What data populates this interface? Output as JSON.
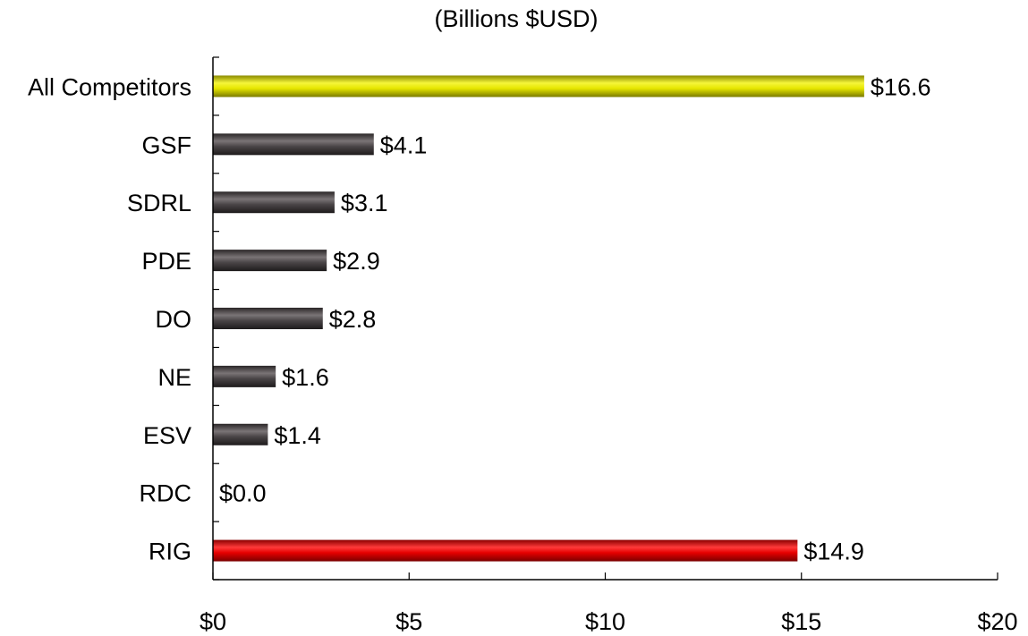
{
  "chart_data": {
    "type": "bar",
    "orientation": "horizontal",
    "title": "",
    "subtitle": "(Billions $USD)",
    "xlabel": "",
    "ylabel": "",
    "categories": [
      "All Competitors",
      "GSF",
      "SDRL",
      "PDE",
      "DO",
      "NE",
      "ESV",
      "RDC",
      "RIG"
    ],
    "values": [
      16.6,
      4.1,
      3.1,
      2.9,
      2.8,
      1.6,
      1.4,
      0.0,
      14.9
    ],
    "value_labels": [
      "$16.6",
      "$4.1",
      "$3.1",
      "$2.9",
      "$2.8",
      "$1.6",
      "$1.4",
      "$0.0",
      "$14.9"
    ],
    "bar_colors": [
      "#e6e600",
      "#4a4547",
      "#4a4547",
      "#4a4547",
      "#4a4547",
      "#4a4547",
      "#4a4547",
      "#4a4547",
      "#e60000"
    ],
    "xlim": [
      0,
      20
    ],
    "x_ticks": [
      0,
      5,
      10,
      15,
      20
    ],
    "x_tick_labels": [
      "$0",
      "$5",
      "$10",
      "$15",
      "$20"
    ],
    "grid": false,
    "legend": "none"
  }
}
